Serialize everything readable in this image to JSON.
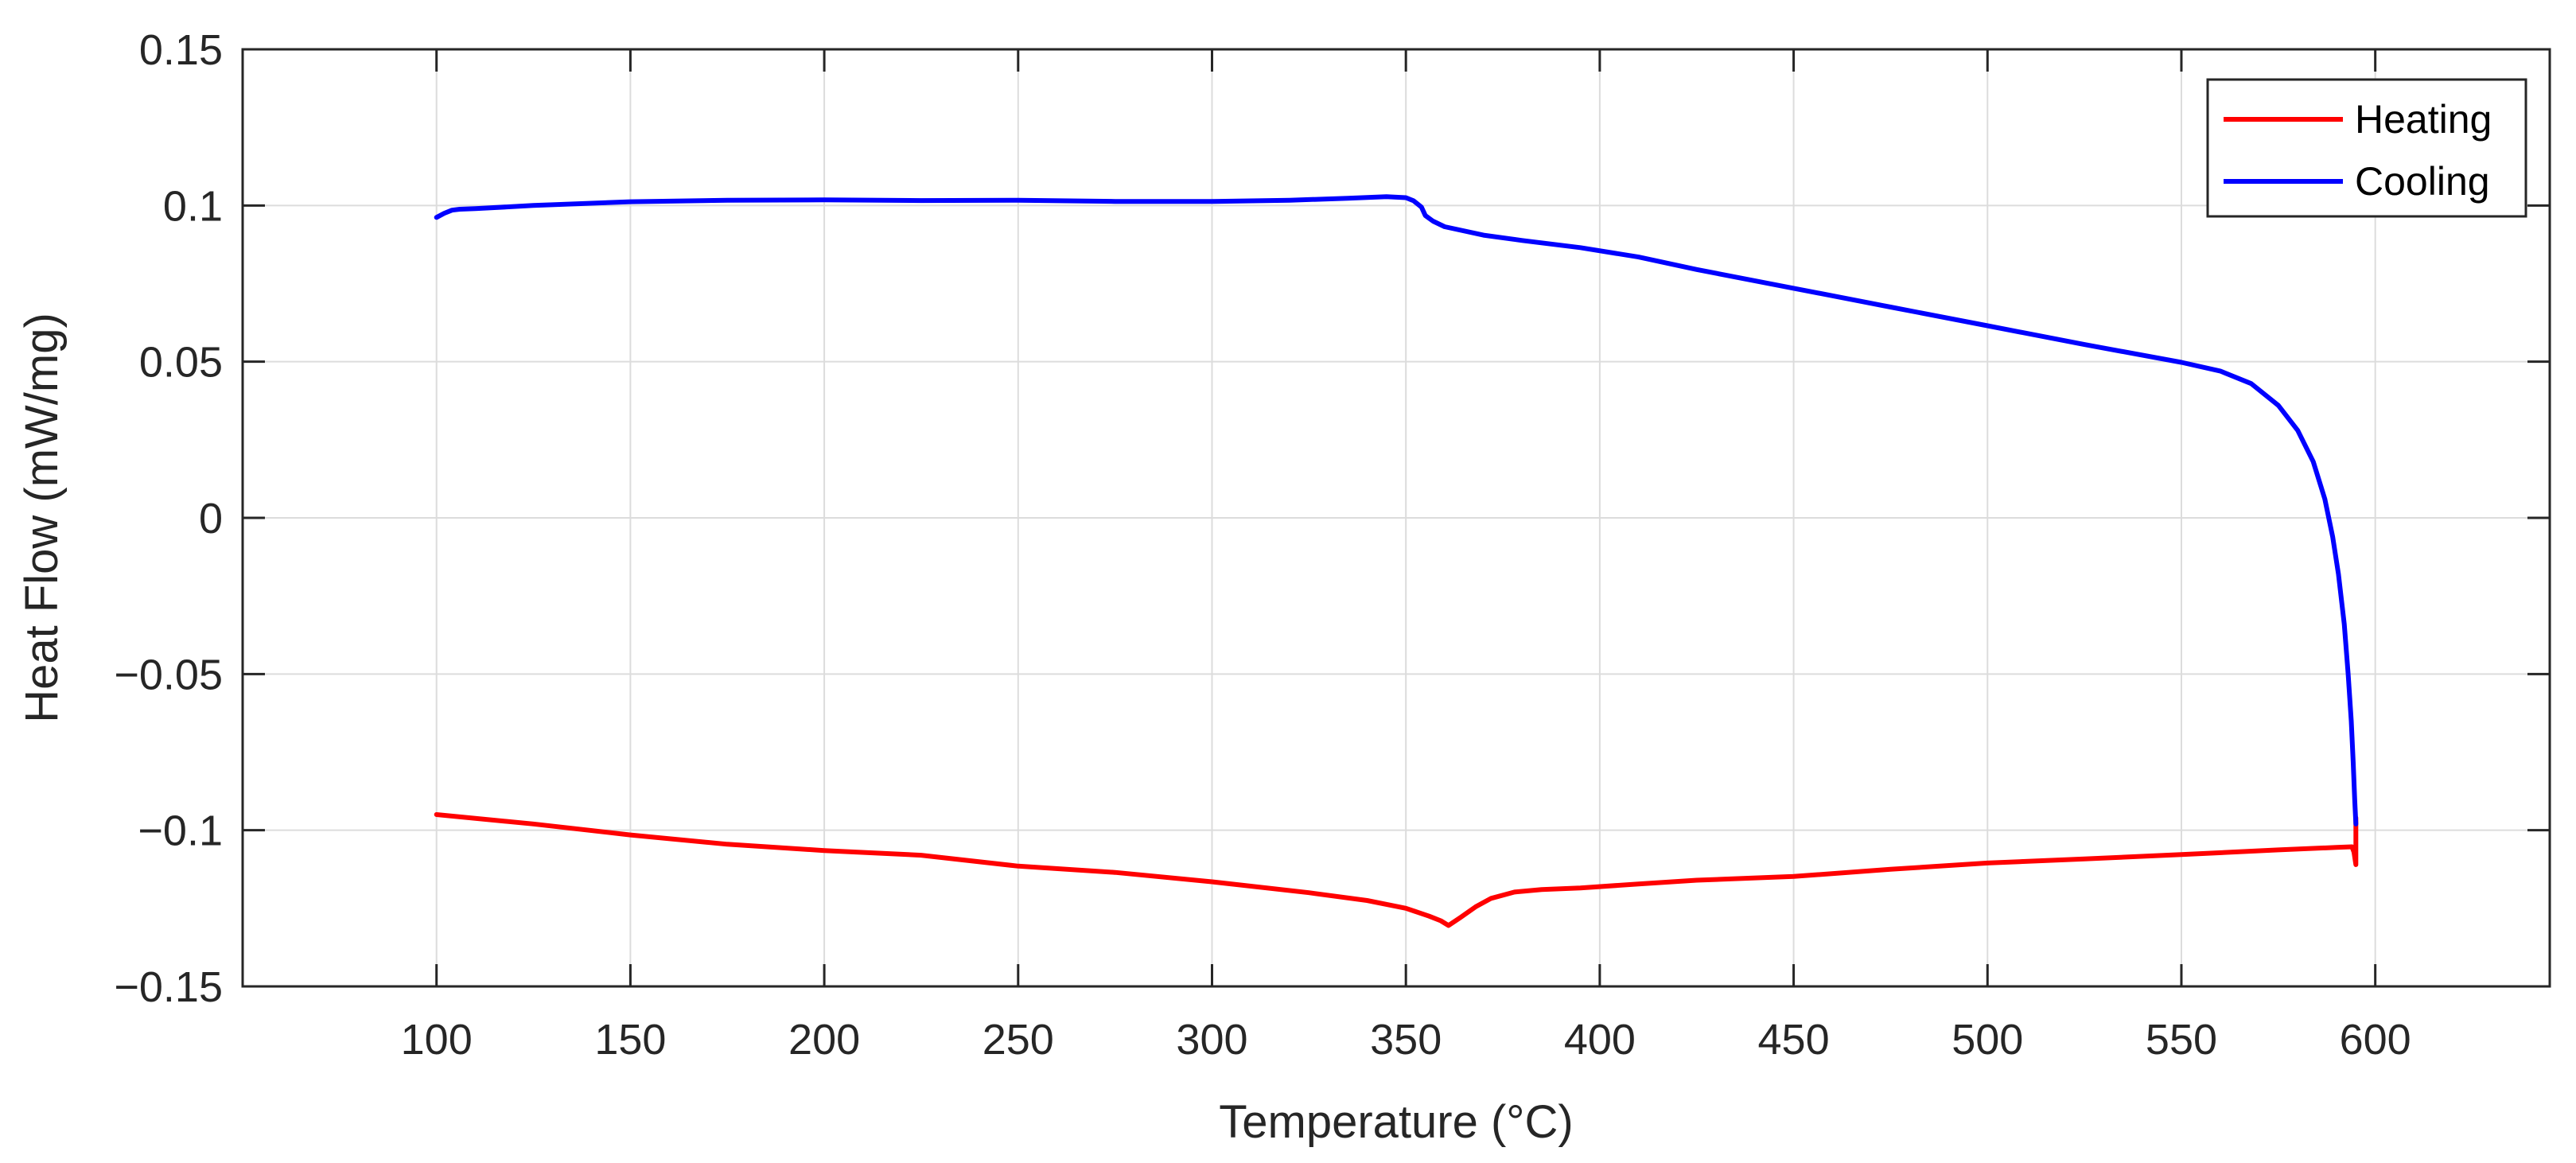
{
  "chart_data": {
    "type": "line",
    "xlabel": "Temperature (°C)",
    "ylabel": "Heat Flow (mW/mg)",
    "xlim": [
      50,
      645
    ],
    "ylim": [
      -0.15,
      0.15
    ],
    "xticks": [
      100,
      150,
      200,
      250,
      300,
      350,
      400,
      450,
      500,
      550,
      600
    ],
    "xtick_labels": [
      "100",
      "150",
      "200",
      "250",
      "300",
      "350",
      "400",
      "450",
      "500",
      "550",
      "600"
    ],
    "yticks": [
      -0.15,
      -0.1,
      -0.05,
      0,
      0.05,
      0.1,
      0.15
    ],
    "ytick_labels": [
      "−0.15",
      "−0.1",
      "−0.05",
      "0",
      "0.05",
      "0.1",
      "0.15"
    ],
    "grid": true,
    "legend_position": "top-right",
    "series": [
      {
        "name": "Heating",
        "color": "#ff0000",
        "x": [
          100,
          125,
          150,
          175,
          200,
          225,
          250,
          275,
          300,
          325,
          340,
          350,
          356,
          359,
          361,
          364,
          368,
          372,
          378,
          385,
          395,
          410,
          425,
          450,
          475,
          500,
          525,
          550,
          575,
          590,
          594,
          594.5,
          595,
          595,
          595
        ],
        "y": [
          -0.095,
          -0.098,
          -0.1015,
          -0.1045,
          -0.1065,
          -0.108,
          -0.1115,
          -0.1135,
          -0.1165,
          -0.12,
          -0.1225,
          -0.125,
          -0.1275,
          -0.129,
          -0.1305,
          -0.128,
          -0.1245,
          -0.1218,
          -0.1198,
          -0.119,
          -0.1185,
          -0.1172,
          -0.116,
          -0.1148,
          -0.1125,
          -0.1105,
          -0.1092,
          -0.1078,
          -0.1063,
          -0.1055,
          -0.1053,
          -0.107,
          -0.111,
          -0.103,
          -0.096
        ]
      },
      {
        "name": "Cooling",
        "color": "#0000ff",
        "x": [
          100,
          102,
          104,
          106,
          110,
          125,
          150,
          175,
          200,
          225,
          250,
          275,
          300,
          320,
          335,
          345,
          350,
          352,
          354,
          355,
          357,
          360,
          370,
          380,
          395,
          410,
          425,
          450,
          475,
          500,
          525,
          550,
          560,
          568,
          575,
          580,
          584,
          587,
          589,
          590.5,
          592,
          593,
          593.8,
          594.3,
          594.7,
          595
        ],
        "y": [
          0.0962,
          0.0975,
          0.0985,
          0.0988,
          0.099,
          0.1,
          0.1012,
          0.1017,
          0.1018,
          0.1016,
          0.1017,
          0.1013,
          0.1013,
          0.1017,
          0.1023,
          0.1028,
          0.1025,
          0.1015,
          0.0995,
          0.0968,
          0.095,
          0.0932,
          0.0905,
          0.0888,
          0.0865,
          0.0835,
          0.0795,
          0.0735,
          0.0675,
          0.0615,
          0.0555,
          0.0498,
          0.047,
          0.043,
          0.036,
          0.028,
          0.018,
          0.006,
          -0.006,
          -0.018,
          -0.034,
          -0.05,
          -0.065,
          -0.078,
          -0.09,
          -0.098
        ]
      }
    ]
  }
}
